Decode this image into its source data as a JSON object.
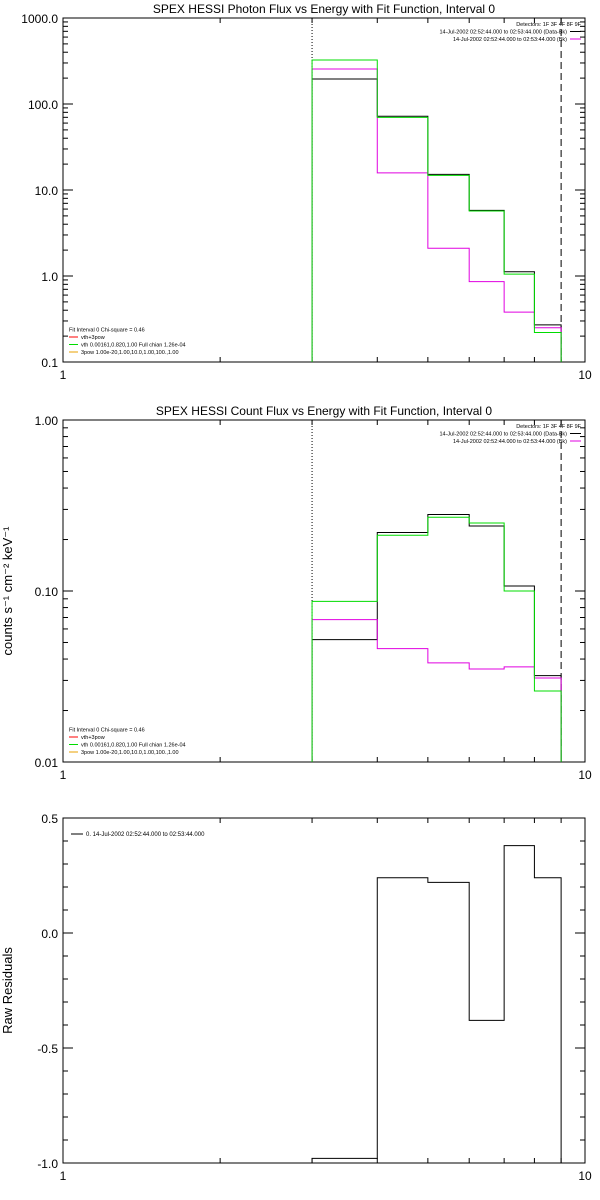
{
  "colors": {
    "black": "#000000",
    "magenta": "#e000e0",
    "green": "#00dc00",
    "orange": "#e8a000",
    "red": "#ff0000"
  },
  "chart_data": [
    {
      "type": "line",
      "title": "SPEX HESSI Photon Flux vs Energy with Fit Function, Interval 0",
      "xscale": "log",
      "yscale": "log",
      "xlim": [
        1,
        10
      ],
      "ylim": [
        0.1,
        1000
      ],
      "x_ticks": [
        {
          "v": 1,
          "label": "1"
        },
        {
          "v": 10,
          "label": "10"
        }
      ],
      "y_ticks": [
        {
          "v": 0.1,
          "label": "0.1"
        },
        {
          "v": 1,
          "label": "1.0"
        },
        {
          "v": 10,
          "label": "10.0"
        },
        {
          "v": 100,
          "label": "100.0"
        },
        {
          "v": 1000,
          "label": "1000.0"
        }
      ],
      "vlines": [
        {
          "x": 3.0,
          "style": "dotted"
        },
        {
          "x": 9.0,
          "style": "dashed"
        }
      ],
      "bin_edges": [
        3.0,
        4.0,
        5.0,
        6.0,
        7.0,
        8.0,
        9.0
      ],
      "series": [
        {
          "color": "black",
          "values": [
            195,
            72,
            15.2,
            5.8,
            1.12,
            0.27
          ]
        },
        {
          "color": "magenta",
          "values": [
            255,
            15.8,
            2.1,
            0.86,
            0.38,
            0.25
          ]
        },
        {
          "color": "green",
          "values": [
            325,
            70,
            14.8,
            5.7,
            1.05,
            0.22
          ]
        }
      ],
      "legend_top": {
        "lines": [
          {
            "text": "Detectors: 1F 3F 4F 8F 9F",
            "color": null
          },
          {
            "text": "14-Jul-2002 02:52:44.000 to 02:53:44.000 (Data-Bk)",
            "color": "black"
          },
          {
            "text": "14-Jul-2002 02:52:44.000 to 02:53:44.000 (Bk)",
            "color": "magenta"
          }
        ]
      },
      "legend_bottom": {
        "header": "Fit Interval 0   Chi-square = 0.46",
        "lines": [
          {
            "text": "vth+3pow",
            "color": "red"
          },
          {
            "text": "vth 0.00161,0.820,1.00  Full chian 1.26e-04",
            "color": "green"
          },
          {
            "text": "3pow 1.00e-20,1.00,10.0,1.00,100.,1.00",
            "color": "orange"
          }
        ]
      }
    },
    {
      "type": "line",
      "title": "SPEX HESSI Count Flux vs Energy with Fit Function, Interval 0",
      "ylabel": "counts s⁻¹ cm⁻² keV⁻¹",
      "xscale": "log",
      "yscale": "log",
      "xlim": [
        1,
        10
      ],
      "ylim": [
        0.01,
        1.0
      ],
      "x_ticks": [
        {
          "v": 1,
          "label": "1"
        },
        {
          "v": 10,
          "label": "10"
        }
      ],
      "y_ticks": [
        {
          "v": 0.01,
          "label": "0.01"
        },
        {
          "v": 0.1,
          "label": "0.10"
        },
        {
          "v": 1,
          "label": "1.00"
        }
      ],
      "vlines": [
        {
          "x": 3.0,
          "style": "dotted"
        },
        {
          "x": 9.0,
          "style": "dashed"
        }
      ],
      "bin_edges": [
        3.0,
        4.0,
        5.0,
        6.0,
        7.0,
        8.0,
        9.0
      ],
      "series": [
        {
          "color": "black",
          "values": [
            0.052,
            0.22,
            0.28,
            0.24,
            0.107,
            0.032
          ]
        },
        {
          "color": "magenta",
          "values": [
            0.068,
            0.046,
            0.038,
            0.035,
            0.036,
            0.031
          ]
        },
        {
          "color": "green",
          "values": [
            0.087,
            0.212,
            0.27,
            0.25,
            0.1,
            0.026
          ]
        }
      ],
      "legend_top": {
        "lines": [
          {
            "text": "Detectors: 1F 3F 4F 8F 9F",
            "color": null
          },
          {
            "text": "14-Jul-2002 02:52:44.000 to 02:53:44.000 (Data-Bk)",
            "color": "black"
          },
          {
            "text": "14-Jul-2002 02:52:44.000 to 02:53:44.000 (Bk)",
            "color": "magenta"
          }
        ]
      },
      "legend_bottom": {
        "header": "Fit Interval 0   Chi-square = 0.46",
        "lines": [
          {
            "text": "vth+3pow",
            "color": "red"
          },
          {
            "text": "vth 0.00161,0.820,1.00  Full chian 1.26e-04",
            "color": "green"
          },
          {
            "text": "3pow 1.00e-20,1.00,10.0,1.00,100.,1.00",
            "color": "orange"
          }
        ]
      }
    },
    {
      "type": "line",
      "title": "",
      "ylabel": "Raw Residuals",
      "xscale": "log",
      "yscale": "linear",
      "xlim": [
        1,
        10
      ],
      "ylim": [
        -1.0,
        0.5
      ],
      "x_ticks": [
        {
          "v": 1,
          "label": "1"
        },
        {
          "v": 10,
          "label": "10"
        }
      ],
      "y_ticks": [
        {
          "v": -1.0,
          "label": "-1.0"
        },
        {
          "v": -0.5,
          "label": "-0.5"
        },
        {
          "v": 0.0,
          "label": "0.0"
        },
        {
          "v": 0.5,
          "label": "0.5"
        }
      ],
      "vlines": [],
      "bin_edges": [
        3.0,
        4.0,
        5.0,
        6.0,
        7.0,
        8.0,
        9.0
      ],
      "series": [
        {
          "color": "black",
          "values": [
            -0.98,
            0.24,
            0.22,
            -0.38,
            0.38,
            0.24
          ]
        }
      ],
      "legend_top_left": {
        "lines": [
          {
            "text": "0. 14-Jul-2002 02:52:44.000 to 02:53:44.000",
            "color": "black"
          }
        ]
      }
    }
  ]
}
